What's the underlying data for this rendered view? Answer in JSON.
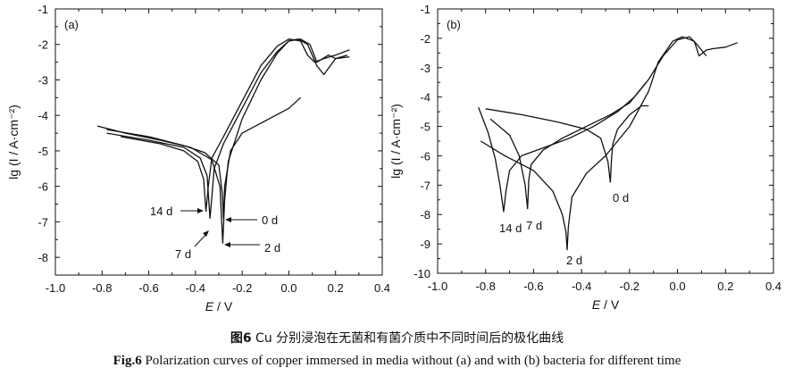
{
  "chart_data": [
    {
      "type": "line",
      "panel_label": "(a)",
      "xlabel_italic": "E",
      "xlabel_rest": " / V",
      "ylabel": "lg (I / A·cm⁻²)",
      "xlim": [
        -1.0,
        0.4
      ],
      "ylim": [
        -8.5,
        -1
      ],
      "xticks": [
        "-1.0",
        "-0.8",
        "-0.6",
        "-0.4",
        "-0.2",
        "0.0",
        "0.2",
        "0.4"
      ],
      "yticks": [
        "-1",
        "-2",
        "-3",
        "-4",
        "-5",
        "-6",
        "-7",
        "-8"
      ],
      "series": [
        {
          "name": "0 d",
          "x": [
            -0.78,
            -0.6,
            -0.45,
            -0.36,
            -0.3,
            -0.285,
            -0.28,
            -0.275,
            -0.25,
            -0.2,
            -0.1,
            0.0,
            0.05
          ],
          "y": [
            -4.4,
            -4.6,
            -4.85,
            -5.05,
            -5.4,
            -6.2,
            -6.9,
            -6.0,
            -5.0,
            -4.5,
            -4.15,
            -3.8,
            -3.5
          ]
        },
        {
          "name": "2 d",
          "x": [
            -0.82,
            -0.7,
            -0.55,
            -0.42,
            -0.33,
            -0.295,
            -0.283,
            -0.275,
            -0.26,
            -0.2,
            -0.12,
            -0.05,
            0.0,
            0.05,
            0.09,
            0.12,
            0.17,
            0.2,
            0.25
          ],
          "y": [
            -4.3,
            -4.5,
            -4.7,
            -4.9,
            -5.25,
            -6.0,
            -7.6,
            -6.4,
            -5.3,
            -4.1,
            -3.0,
            -2.25,
            -1.9,
            -1.85,
            -2.0,
            -2.5,
            -2.3,
            -2.4,
            -2.3
          ]
        },
        {
          "name": "7 d",
          "x": [
            -0.78,
            -0.6,
            -0.45,
            -0.38,
            -0.35,
            -0.338,
            -0.33,
            -0.32,
            -0.28,
            -0.2,
            -0.12,
            -0.05,
            0.0,
            0.04,
            0.08,
            0.12,
            0.15,
            0.2,
            0.26
          ],
          "y": [
            -4.5,
            -4.7,
            -4.9,
            -5.2,
            -5.7,
            -6.9,
            -6.3,
            -5.5,
            -4.8,
            -3.8,
            -2.8,
            -2.2,
            -1.9,
            -1.85,
            -2.0,
            -2.6,
            -2.85,
            -2.4,
            -2.35
          ]
        },
        {
          "name": "14 d",
          "x": [
            -0.72,
            -0.55,
            -0.45,
            -0.39,
            -0.365,
            -0.355,
            -0.345,
            -0.33,
            -0.28,
            -0.2,
            -0.12,
            -0.05,
            0.0,
            0.05,
            0.08,
            0.11,
            0.15,
            0.2,
            0.26
          ],
          "y": [
            -4.6,
            -4.8,
            -5.0,
            -5.3,
            -5.8,
            -6.7,
            -6.0,
            -5.2,
            -4.6,
            -3.6,
            -2.6,
            -2.05,
            -1.85,
            -1.9,
            -2.3,
            -2.5,
            -2.4,
            -2.3,
            -2.15
          ]
        }
      ],
      "annotations": [
        "14 d",
        "7 d",
        "0 d",
        "2 d"
      ]
    },
    {
      "type": "line",
      "panel_label": "(b)",
      "xlabel_italic": "E",
      "xlabel_rest": " / V",
      "ylabel": "lg (I / A·cm⁻²)",
      "xlim": [
        -1.0,
        0.4
      ],
      "ylim": [
        -10,
        -1
      ],
      "xticks": [
        "-1.0",
        "-0.8",
        "-0.6",
        "-0.4",
        "-0.2",
        "0.0",
        "0.2",
        "0.4"
      ],
      "yticks": [
        "-1",
        "-2",
        "-3",
        "-4",
        "-5",
        "-6",
        "-7",
        "-8",
        "-9",
        "-10"
      ],
      "series": [
        {
          "name": "0 d",
          "x": [
            -0.8,
            -0.65,
            -0.5,
            -0.38,
            -0.32,
            -0.29,
            -0.28,
            -0.275,
            -0.27,
            -0.25,
            -0.2,
            -0.15,
            -0.12
          ],
          "y": [
            -4.4,
            -4.6,
            -4.85,
            -5.1,
            -5.4,
            -6.2,
            -6.9,
            -6.1,
            -5.6,
            -5.1,
            -4.6,
            -4.3,
            -4.3
          ]
        },
        {
          "name": "2 d",
          "x": [
            -0.82,
            -0.72,
            -0.6,
            -0.52,
            -0.48,
            -0.465,
            -0.46,
            -0.455,
            -0.44,
            -0.38,
            -0.3,
            -0.2,
            -0.12,
            -0.08,
            -0.02,
            0.02,
            0.07,
            0.09,
            0.12,
            0.15,
            0.2,
            0.25
          ],
          "y": [
            -5.5,
            -6.0,
            -6.5,
            -7.2,
            -8.0,
            -8.6,
            -9.2,
            -8.4,
            -7.4,
            -6.6,
            -6.0,
            -5.0,
            -3.8,
            -2.8,
            -2.1,
            -1.95,
            -2.1,
            -2.6,
            -2.4,
            -2.35,
            -2.3,
            -2.15
          ]
        },
        {
          "name": "7 d",
          "x": [
            -0.78,
            -0.7,
            -0.66,
            -0.635,
            -0.625,
            -0.62,
            -0.61,
            -0.56,
            -0.48,
            -0.38,
            -0.28,
            -0.2,
            -0.12,
            -0.06,
            0.0,
            0.05,
            0.08,
            0.1,
            0.12
          ],
          "y": [
            -4.75,
            -5.3,
            -6.0,
            -7.0,
            -7.8,
            -6.8,
            -6.3,
            -5.8,
            -5.4,
            -5.0,
            -4.6,
            -4.2,
            -3.4,
            -2.6,
            -2.05,
            -1.95,
            -2.2,
            -2.4,
            -2.6
          ]
        },
        {
          "name": "14 d",
          "x": [
            -0.83,
            -0.79,
            -0.76,
            -0.74,
            -0.725,
            -0.715,
            -0.7,
            -0.65,
            -0.55,
            -0.45,
            -0.35,
            -0.25,
            -0.18,
            -0.13
          ],
          "y": [
            -4.35,
            -5.2,
            -6.1,
            -7.0,
            -7.9,
            -7.2,
            -6.5,
            -6.0,
            -5.7,
            -5.4,
            -5.0,
            -4.5,
            -4.0,
            -3.5
          ]
        }
      ],
      "annotations": [
        "14 d",
        "7 d",
        "2 d",
        "0 d"
      ]
    }
  ],
  "caption": {
    "cn_label": "图6",
    "cn_text": " Cu 分别浸泡在无菌和有菌介质中不同时间后的极化曲线",
    "en_label": "Fig.6",
    "en_text": " Polarization curves of copper immersed in media without (a) and with (b) bacteria for different time"
  }
}
